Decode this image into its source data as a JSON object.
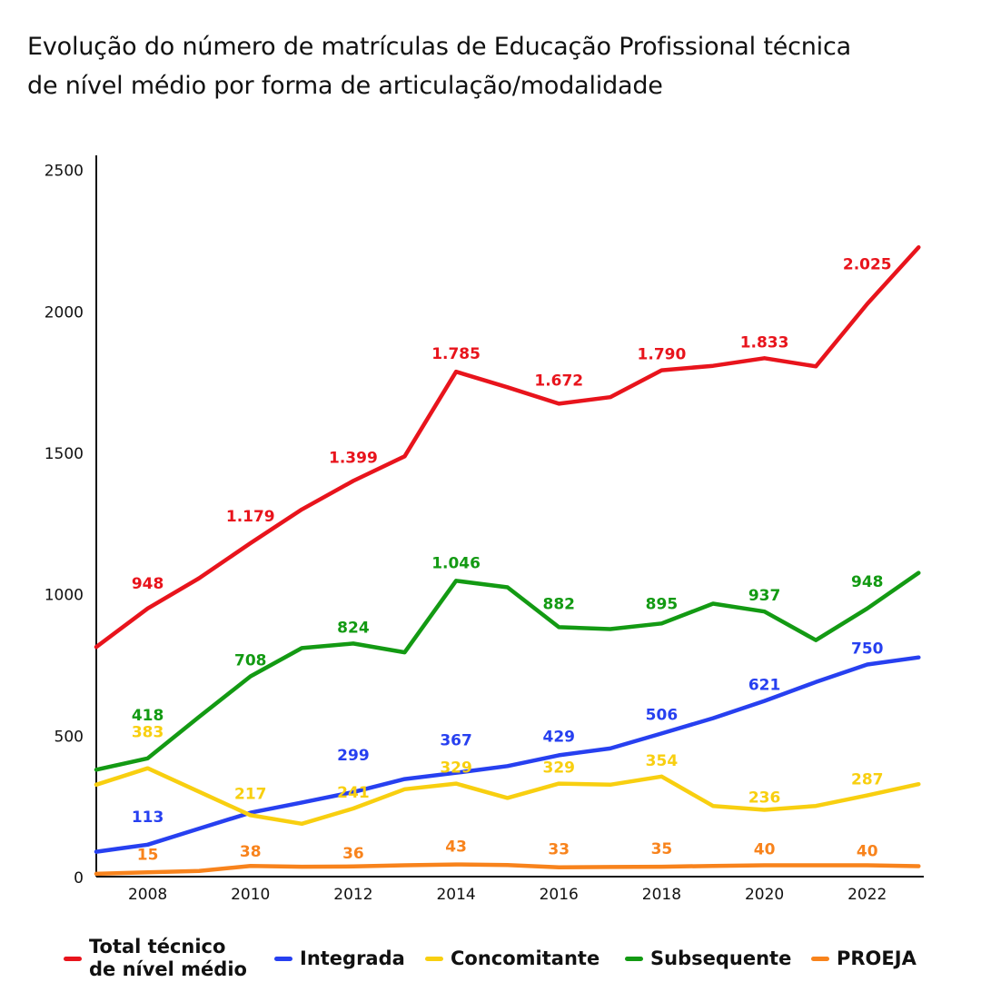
{
  "title_lines": [
    "Evolução do número de matrículas de Educação Profissional técnica",
    "de nível médio por forma de articulação/modalidade"
  ],
  "legend": [
    {
      "label_lines": [
        "Total técnico",
        "de nível médio"
      ],
      "color": "#e8141c"
    },
    {
      "label_lines": [
        "Integrada"
      ],
      "color": "#2740f0"
    },
    {
      "label_lines": [
        "Concomitante"
      ],
      "color": "#f8cf10"
    },
    {
      "label_lines": [
        "Subsequente"
      ],
      "color": "#139a13"
    },
    {
      "label_lines": [
        "PROEJA"
      ],
      "color": "#f8831c"
    }
  ],
  "chart_data": {
    "type": "line",
    "title": "Evolução do número de matrículas de Educação Profissional técnica de nível médio por forma de articulação/modalidade",
    "x": [
      2007,
      2008,
      2009,
      2010,
      2011,
      2012,
      2013,
      2014,
      2015,
      2016,
      2017,
      2018,
      2019,
      2020,
      2021,
      2022,
      2023
    ],
    "xticks": [
      2008,
      2010,
      2012,
      2014,
      2016,
      2018,
      2020,
      2022
    ],
    "yticks": [
      0,
      500,
      1000,
      1500,
      2000,
      2500
    ],
    "ylim": [
      0,
      2550
    ],
    "xlim": [
      2007,
      2023.1
    ],
    "grid": false,
    "legend_position": "bottom",
    "series": [
      {
        "name": "Total técnico de nível médio",
        "color": "#e8141c",
        "values": [
          812,
          948,
          1055,
          1179,
          1298,
          1399,
          1486,
          1785,
          1730,
          1672,
          1695,
          1790,
          1806,
          1833,
          1804,
          2025,
          2225
        ],
        "labels": [
          [
            2008,
            "948"
          ],
          [
            2010,
            "1.179"
          ],
          [
            2012,
            "1.399"
          ],
          [
            2014,
            "1.785"
          ],
          [
            2016,
            "1.672"
          ],
          [
            2018,
            "1.790"
          ],
          [
            2020,
            "1.833"
          ],
          [
            2022,
            "2.025"
          ]
        ]
      },
      {
        "name": "Integrada",
        "color": "#2740f0",
        "values": [
          88,
          113,
          170,
          226,
          262,
          299,
          345,
          367,
          391,
          429,
          453,
          506,
          560,
          621,
          688,
          750,
          775
        ],
        "labels": [
          [
            2008,
            "113"
          ],
          [
            2012,
            "299"
          ],
          [
            2014,
            "367"
          ],
          [
            2016,
            "429"
          ],
          [
            2018,
            "506"
          ],
          [
            2020,
            "621"
          ],
          [
            2022,
            "750"
          ]
        ]
      },
      {
        "name": "Concomitante",
        "color": "#f8cf10",
        "values": [
          325,
          383,
          300,
          217,
          187,
          241,
          309,
          329,
          278,
          329,
          325,
          354,
          250,
          236,
          250,
          287,
          327
        ],
        "labels": [
          [
            2008,
            "383"
          ],
          [
            2010,
            "217"
          ],
          [
            2012,
            "241"
          ],
          [
            2014,
            "329"
          ],
          [
            2016,
            "329"
          ],
          [
            2018,
            "354"
          ],
          [
            2020,
            "236"
          ],
          [
            2022,
            "287"
          ]
        ]
      },
      {
        "name": "Subsequente",
        "color": "#139a13",
        "values": [
          378,
          418,
          565,
          708,
          808,
          824,
          793,
          1046,
          1023,
          882,
          875,
          895,
          965,
          937,
          836,
          948,
          1074
        ],
        "labels": [
          [
            2008,
            "418"
          ],
          [
            2010,
            "708"
          ],
          [
            2012,
            "824"
          ],
          [
            2014,
            "1.046"
          ],
          [
            2016,
            "882"
          ],
          [
            2018,
            "895"
          ],
          [
            2020,
            "937"
          ],
          [
            2022,
            "948"
          ]
        ]
      },
      {
        "name": "PROEJA",
        "color": "#f8831c",
        "values": [
          10,
          15,
          20,
          38,
          35,
          36,
          40,
          43,
          41,
          33,
          34,
          35,
          38,
          40,
          40,
          40,
          37
        ],
        "labels": [
          [
            2008,
            "15"
          ],
          [
            2010,
            "38"
          ],
          [
            2012,
            "36"
          ],
          [
            2014,
            "43"
          ],
          [
            2016,
            "33"
          ],
          [
            2018,
            "35"
          ],
          [
            2020,
            "40"
          ],
          [
            2022,
            "40"
          ]
        ]
      }
    ]
  }
}
